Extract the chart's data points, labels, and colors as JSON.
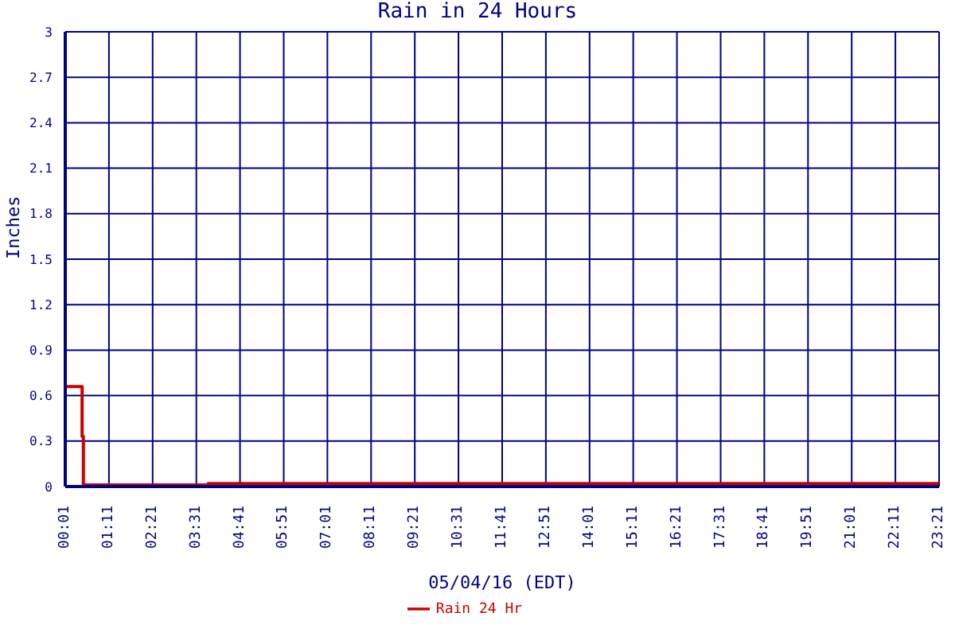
{
  "chart_data": {
    "type": "step",
    "title": "Rain in 24 Hours",
    "xlabel": "05/04/16 (EDT)",
    "ylabel": "Inches",
    "x": [
      0.0167,
      0.4667,
      0.5,
      3.8333,
      23.35
    ],
    "series": [
      {
        "name": "Rain 24 Hr",
        "color": "#cc0000",
        "values": [
          0.66,
          0.33,
          0.01,
          0.02,
          0.02
        ]
      }
    ],
    "xlim": [
      0.0167,
      23.35
    ],
    "xticks": [
      {
        "value": 0.0167,
        "label": "00:01"
      },
      {
        "value": 1.1833,
        "label": "01:11"
      },
      {
        "value": 2.35,
        "label": "02:21"
      },
      {
        "value": 3.5167,
        "label": "03:31"
      },
      {
        "value": 4.6833,
        "label": "04:41"
      },
      {
        "value": 5.85,
        "label": "05:51"
      },
      {
        "value": 7.0167,
        "label": "07:01"
      },
      {
        "value": 8.1833,
        "label": "08:11"
      },
      {
        "value": 9.35,
        "label": "09:21"
      },
      {
        "value": 10.5167,
        "label": "10:31"
      },
      {
        "value": 11.6833,
        "label": "11:41"
      },
      {
        "value": 12.85,
        "label": "12:51"
      },
      {
        "value": 14.0167,
        "label": "14:01"
      },
      {
        "value": 15.1833,
        "label": "15:11"
      },
      {
        "value": 16.35,
        "label": "16:21"
      },
      {
        "value": 17.5167,
        "label": "17:31"
      },
      {
        "value": 18.6833,
        "label": "18:41"
      },
      {
        "value": 19.85,
        "label": "19:51"
      },
      {
        "value": 21.0167,
        "label": "21:01"
      },
      {
        "value": 22.1833,
        "label": "22:11"
      },
      {
        "value": 23.35,
        "label": "23:21"
      }
    ],
    "ylim": [
      0,
      3
    ],
    "yticks": [
      0,
      0.3,
      0.6,
      0.9,
      1.2,
      1.5,
      1.8,
      2.1,
      2.4,
      2.7,
      3
    ],
    "grid": true,
    "legend": "bottom",
    "marker": "none",
    "line_style": "solid"
  }
}
